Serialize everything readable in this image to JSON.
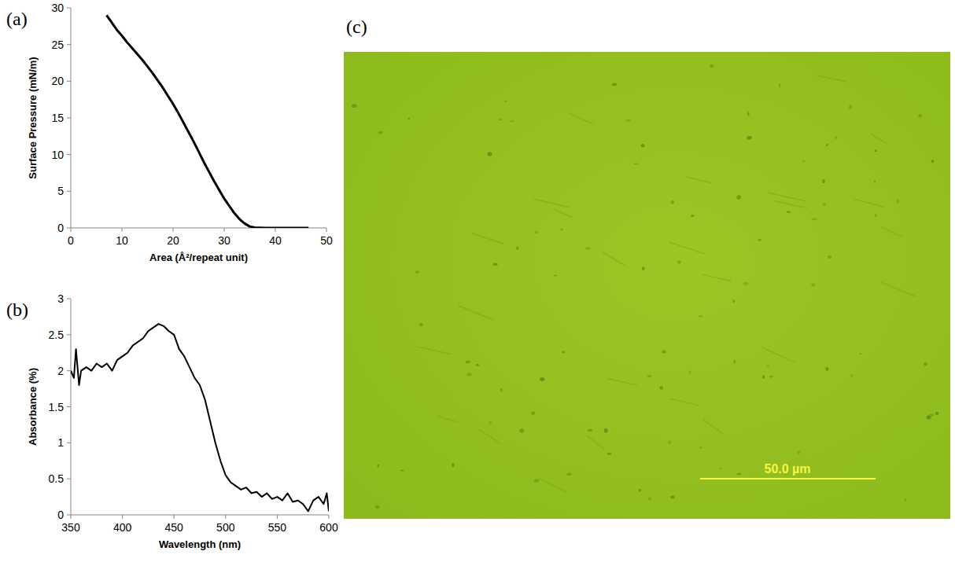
{
  "chart_data": [
    {
      "type": "line",
      "panel": "(a)",
      "x_label": "Area (Å²/repeat unit)",
      "y_label": "Surface Pressure (mN/m)",
      "x": [
        46.5,
        44,
        42,
        40,
        38,
        36,
        35,
        34,
        33,
        32,
        31,
        30,
        29,
        28,
        27,
        26,
        25,
        24,
        23,
        22,
        21,
        20,
        19,
        18,
        17,
        16,
        15,
        14,
        13,
        12,
        11,
        10,
        9,
        8,
        7
      ],
      "values": [
        0,
        0,
        0,
        0,
        0,
        0.05,
        0.2,
        0.6,
        1.2,
        2.0,
        3.0,
        4.0,
        5.2,
        6.4,
        7.7,
        9.0,
        10.4,
        11.8,
        13.1,
        14.4,
        15.7,
        16.9,
        18.0,
        19.1,
        20.1,
        21.1,
        22.0,
        22.9,
        23.7,
        24.5,
        25.3,
        26.2,
        27.0,
        28.0,
        29.0
      ],
      "color": "#000000",
      "xlim": [
        0,
        50
      ],
      "xticks": [
        0,
        10,
        20,
        30,
        40,
        50
      ],
      "ylim": [
        0,
        30
      ],
      "yticks": [
        0,
        5,
        10,
        15,
        20,
        25,
        30
      ],
      "grid": false
    },
    {
      "type": "line",
      "panel": "(b)",
      "x_label": "Wavelength (nm)",
      "y_label": "Absorbance (%)",
      "x": [
        350,
        353,
        355,
        358,
        360,
        365,
        370,
        375,
        380,
        385,
        390,
        395,
        400,
        405,
        410,
        415,
        420,
        425,
        430,
        435,
        440,
        445,
        450,
        455,
        460,
        465,
        470,
        475,
        480,
        485,
        490,
        495,
        500,
        505,
        510,
        515,
        520,
        525,
        530,
        535,
        540,
        545,
        550,
        555,
        560,
        565,
        570,
        575,
        580,
        585,
        590,
        595,
        598,
        600
      ],
      "values": [
        2.0,
        1.9,
        2.3,
        1.8,
        2.0,
        2.05,
        2.0,
        2.1,
        2.05,
        2.1,
        2.0,
        2.15,
        2.2,
        2.25,
        2.35,
        2.4,
        2.45,
        2.55,
        2.6,
        2.65,
        2.62,
        2.55,
        2.5,
        2.3,
        2.2,
        2.05,
        1.9,
        1.8,
        1.6,
        1.3,
        1.0,
        0.75,
        0.55,
        0.45,
        0.4,
        0.35,
        0.38,
        0.3,
        0.32,
        0.25,
        0.3,
        0.22,
        0.25,
        0.2,
        0.3,
        0.18,
        0.2,
        0.15,
        0.05,
        0.2,
        0.25,
        0.15,
        0.3,
        0.05
      ],
      "color": "#000000",
      "xlim": [
        350,
        600
      ],
      "xticks": [
        350,
        400,
        450,
        500,
        550,
        600
      ],
      "ylim": [
        0,
        3
      ],
      "yticks": [
        0,
        0.5,
        1,
        1.5,
        2,
        2.5,
        3
      ],
      "grid": false
    }
  ],
  "image": {
    "panel": "(c)",
    "scale_bar": "50.0 µm"
  }
}
